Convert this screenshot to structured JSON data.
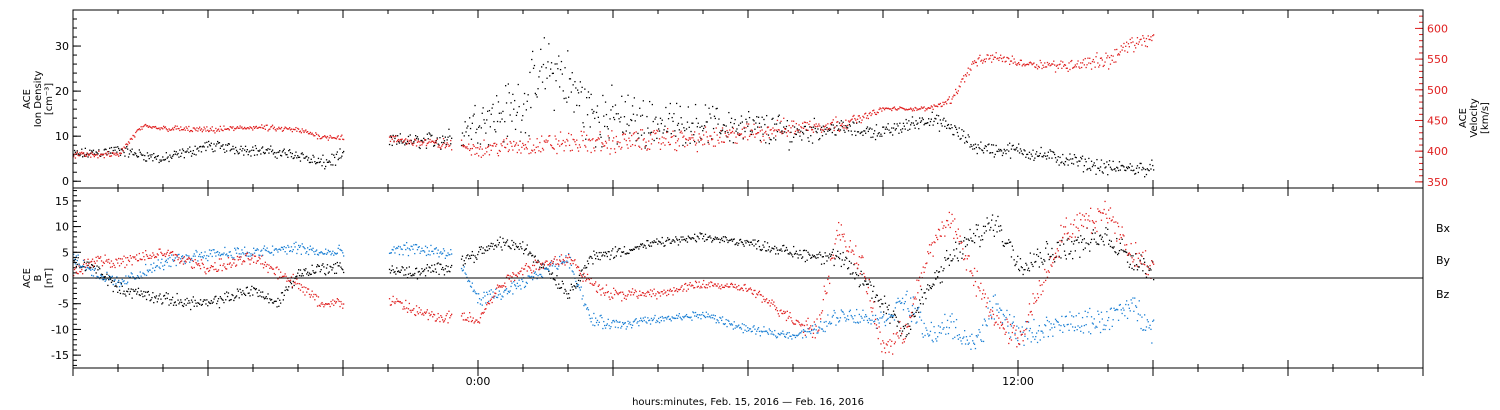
{
  "title": "",
  "xlabel": "hours:minutes, Feb. 15, 2016 — Feb. 16, 2016",
  "x_tick_labels": [
    {
      "label": "0:00",
      "hour": 0
    },
    {
      "label": "12:00",
      "hour": 12
    }
  ],
  "colors": {
    "black": "#000000",
    "red": "#e02020",
    "blue": "#1a7fd4"
  },
  "chart_data": [
    {
      "type": "scatter",
      "panel": "top",
      "ylabel_left": [
        "ACE",
        "Ion Density",
        "[cm⁻³]"
      ],
      "ylabel_right": [
        "ACE",
        "Velocity",
        "[km/s]"
      ],
      "x_unit": "hours relative to Feb. 16, 2016 00:00",
      "xlim": [
        -9,
        21
      ],
      "ylim_left": [
        -1.5,
        38
      ],
      "yticks_left": [
        0,
        10,
        20,
        30
      ],
      "ylim_right": [
        340,
        630
      ],
      "yticks_right": [
        350,
        400,
        450,
        500,
        550,
        600
      ],
      "series": [
        {
          "axis": "left",
          "color": "black",
          "x": [
            -9,
            -8,
            -7,
            -6,
            -5,
            -4,
            -3.5,
            -2,
            -1.2,
            -0.5,
            0,
            0.5,
            1,
            1.5,
            1.8,
            2.5,
            3,
            4,
            5,
            6,
            7,
            8,
            9,
            10,
            10.5,
            11,
            11.5,
            12,
            13,
            14,
            14.5,
            15
          ],
          "y": [
            6,
            7,
            5,
            8,
            7,
            6,
            4,
            9,
            9,
            10,
            14,
            15,
            17,
            25,
            24,
            15,
            14,
            13,
            13,
            12,
            11,
            12,
            11,
            14,
            12,
            8,
            7,
            7,
            5,
            3,
            3,
            3
          ],
          "band": [
            1.5,
            1.5,
            1.5,
            1.5,
            1.5,
            1.5,
            2,
            2,
            2,
            4,
            6,
            8,
            9,
            10,
            10,
            9,
            8,
            6,
            5,
            5,
            4,
            2,
            2,
            2,
            2,
            2,
            2,
            2,
            2,
            2,
            2,
            2
          ]
        },
        {
          "axis": "right",
          "color": "red",
          "x": [
            -9,
            -8,
            -7.5,
            -6,
            -5,
            -4,
            -3.5,
            -2,
            -1.2,
            -0.5,
            0,
            1,
            2,
            3,
            4,
            5,
            6,
            7,
            8,
            8.5,
            9,
            10,
            10.5,
            11,
            11.5,
            12,
            13,
            13.5,
            14,
            14.5,
            15
          ],
          "y": [
            395,
            395,
            440,
            435,
            440,
            435,
            425,
            420,
            415,
            410,
            405,
            410,
            415,
            415,
            420,
            420,
            430,
            440,
            445,
            455,
            470,
            470,
            485,
            545,
            555,
            545,
            540,
            545,
            550,
            575,
            585
          ],
          "band": [
            6,
            6,
            6,
            6,
            6,
            6,
            6,
            8,
            10,
            12,
            15,
            20,
            22,
            22,
            22,
            22,
            20,
            18,
            15,
            8,
            4,
            4,
            8,
            10,
            10,
            8,
            12,
            15,
            18,
            15,
            12
          ]
        }
      ]
    },
    {
      "type": "scatter",
      "panel": "bottom",
      "ylabel_left": [
        "ACE",
        "B",
        "[nT]"
      ],
      "legend": [
        "Bx",
        "By",
        "Bz"
      ],
      "legend_position": "right",
      "x_unit": "hours relative to Feb. 16, 2016 00:00",
      "xlim": [
        -9,
        21
      ],
      "ylim": [
        -17.5,
        17.5
      ],
      "yticks": [
        -15,
        -10,
        -5,
        0,
        5,
        10,
        15
      ],
      "zero_line": true,
      "series": [
        {
          "name": "Bx",
          "color": "black",
          "x": [
            -9,
            -8.5,
            -8,
            -7,
            -6,
            -5,
            -4.5,
            -4,
            -3.5,
            -2,
            -1.5,
            -0.8,
            -0.5,
            0,
            0.5,
            1,
            1.5,
            2,
            2.5,
            3,
            4,
            5,
            6,
            7,
            8,
            8.5,
            9,
            9.5,
            10,
            10.5,
            11,
            11.5,
            12,
            13,
            14,
            14.5,
            15
          ],
          "y": [
            3,
            2,
            -2,
            -4,
            -5,
            -2,
            -5,
            1,
            2,
            2,
            1,
            2,
            3,
            5,
            7,
            6,
            2,
            -3,
            4,
            5,
            7,
            8,
            7,
            5,
            4,
            0,
            -5,
            -10,
            -2,
            4,
            8,
            11,
            3,
            6,
            8,
            4,
            2
          ],
          "band": [
            1.5,
            1.5,
            1.5,
            1.5,
            1.5,
            1.5,
            1.5,
            1.5,
            1.5,
            1.5,
            1.5,
            1.5,
            1.5,
            1.5,
            1.5,
            1.5,
            1.5,
            1.5,
            1.5,
            1.5,
            1,
            1,
            1,
            1.5,
            2,
            3,
            3,
            3,
            3,
            3,
            3,
            3,
            3,
            3,
            3,
            3,
            3
          ]
        },
        {
          "name": "By",
          "color": "blue",
          "x": [
            -9,
            -8.5,
            -8,
            -7,
            -6,
            -5,
            -4,
            -3.5,
            -2,
            -1.5,
            -0.8,
            -0.5,
            0,
            0.5,
            1,
            1.5,
            2,
            2.5,
            3,
            4,
            5,
            6,
            7,
            7.5,
            8,
            9,
            9.5,
            10,
            10.5,
            11,
            11.5,
            12,
            13,
            14,
            14.5,
            15
          ],
          "y": [
            4,
            1,
            -1,
            3,
            5,
            5,
            6,
            5,
            5,
            6,
            5,
            4,
            -4,
            -3,
            -1,
            2,
            4,
            -8,
            -9,
            -8,
            -7,
            -10,
            -11,
            -10,
            -7,
            -8,
            -4,
            -11,
            -9,
            -13,
            -5,
            -11,
            -9,
            -8,
            -5,
            -10
          ],
          "band": [
            1.5,
            1.5,
            1.5,
            1.5,
            1.5,
            1.5,
            1.5,
            1.5,
            1.5,
            1.5,
            1.5,
            1.5,
            1.5,
            1.5,
            1.5,
            1.5,
            1.5,
            1.5,
            1.5,
            1,
            1,
            1,
            1,
            1.5,
            2,
            2,
            3,
            3,
            3,
            3,
            3,
            3,
            3,
            3,
            3,
            3
          ]
        },
        {
          "name": "Bz",
          "color": "red",
          "x": [
            -9,
            -8.5,
            -8,
            -7,
            -6,
            -5,
            -4,
            -3.5,
            -2,
            -1.5,
            -0.8,
            -0.5,
            0,
            0.5,
            1,
            1.5,
            2,
            2.5,
            3,
            4,
            5,
            6,
            7,
            7.5,
            8,
            8.5,
            9,
            9.5,
            10,
            10.5,
            11,
            11.5,
            12,
            13,
            14,
            14.5,
            15
          ],
          "y": [
            1,
            4,
            3,
            5,
            2,
            4,
            -1,
            -5,
            -4,
            -6,
            -8,
            -7,
            -8,
            -1,
            2,
            3,
            4,
            -1,
            -3,
            -3,
            -1,
            -2,
            -8,
            -10,
            9,
            3,
            -14,
            -10,
            5,
            12,
            0,
            -8,
            -12,
            9,
            13,
            5,
            2
          ],
          "band": [
            1.5,
            1.5,
            1.5,
            1.5,
            1.5,
            1.5,
            1.5,
            1.5,
            1.5,
            1.5,
            1.5,
            1.5,
            1.5,
            1.5,
            1.5,
            1.5,
            1.5,
            1.5,
            1.5,
            1,
            1,
            1,
            1.5,
            3,
            3,
            3,
            3,
            3,
            3,
            3,
            3,
            3,
            3,
            3,
            3,
            3,
            3
          ]
        }
      ]
    }
  ]
}
